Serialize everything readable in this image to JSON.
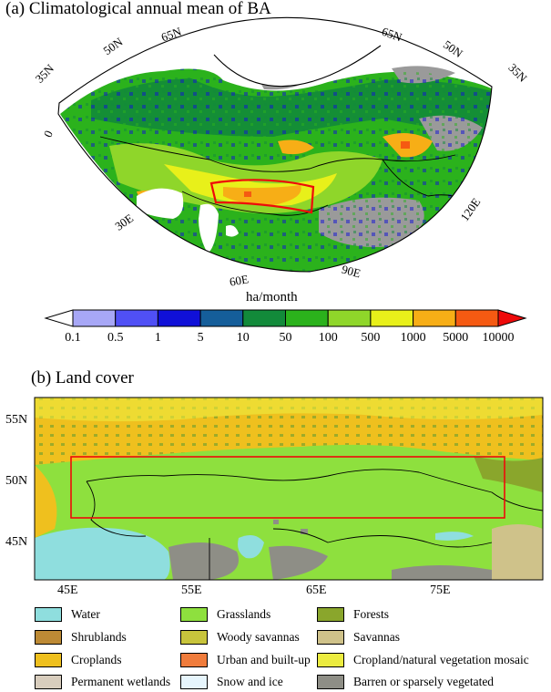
{
  "panel_a": {
    "title": "(a) Climatological annual mean of BA",
    "lat_labels_left": [
      "35N",
      "50N",
      "65N"
    ],
    "lat_labels_right": [
      "65N",
      "50N",
      "35N"
    ],
    "lon_labels": [
      "0",
      "30E",
      "60E",
      "90E",
      "120E"
    ],
    "colorbar": {
      "unit": "ha/month",
      "ticks": [
        "0.1",
        "0.5",
        "1",
        "5",
        "10",
        "50",
        "100",
        "500",
        "1000",
        "5000",
        "10000"
      ],
      "colors": [
        "#ffffff",
        "#a7a7f6",
        "#5050f5",
        "#1010d8",
        "#155e9a",
        "#128a3a",
        "#2bb21c",
        "#8fd62a",
        "#e8f01a",
        "#f7ae16",
        "#f55a12",
        "#ee0a0a"
      ]
    }
  },
  "panel_b": {
    "title": "(b) Land cover",
    "lat_labels": [
      "55N",
      "50N",
      "45N"
    ],
    "lon_labels": [
      "45E",
      "55E",
      "65E",
      "75E"
    ],
    "legend": [
      {
        "label": "Water",
        "color": "#8fdede"
      },
      {
        "label": "Grasslands",
        "color": "#8ee03e"
      },
      {
        "label": "Forests",
        "color": "#8aa62c"
      },
      {
        "label": "Shrublands",
        "color": "#bd8a35"
      },
      {
        "label": "Woody savannas",
        "color": "#c8c43c"
      },
      {
        "label": "Savannas",
        "color": "#cfc28a"
      },
      {
        "label": "Croplands",
        "color": "#efc01e"
      },
      {
        "label": "Urban and built-up",
        "color": "#f07c3c"
      },
      {
        "label": "Cropland/natural vegetation mosaic",
        "color": "#ecec40"
      },
      {
        "label": "Permanent wetlands",
        "color": "#d8cdbd"
      },
      {
        "label": "Snow and ice",
        "color": "#e6f5fc"
      },
      {
        "label": "Barren or sparsely vegetated",
        "color": "#8e8e86"
      }
    ]
  }
}
